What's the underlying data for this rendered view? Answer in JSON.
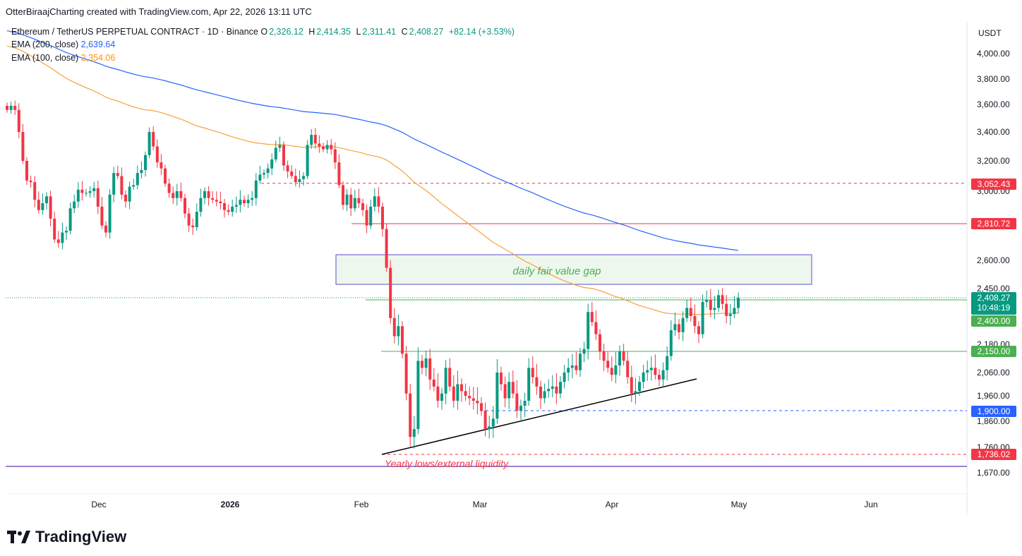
{
  "header": {
    "attribution": "OtterBiraajCharting created with TradingView.com, Apr 22, 2026 13:11 UTC"
  },
  "legend": {
    "symbol": "Ethereum / TetherUS PERPETUAL CONTRACT · 1D · Binance",
    "open_label": "O",
    "open": "2,326.12",
    "high_label": "H",
    "high": "2,414.35",
    "low_label": "L",
    "low": "2,311.41",
    "close_label": "C",
    "close": "2,408.27",
    "change": "+82.14 (+3.53%)",
    "ema200_label": "EMA (200, close)",
    "ema200_value": "2,639.64",
    "ema100_label": "EMA (100, close)",
    "ema100_value": "2,354.06"
  },
  "axis": {
    "currency": "USDT"
  },
  "annotations": {
    "fvg": "daily fair value gap",
    "yearly_lows": "Yearly lows/external liquidity"
  },
  "price_tags": {
    "p3052": "3,052.43",
    "p2810": "2,810.72",
    "current": "2,408.27",
    "countdown": "10:48:19",
    "p2400": "2,400.00",
    "p2150": "2,150.00",
    "p1900": "1,900.00",
    "p1736": "1,736.02"
  },
  "colors": {
    "up": "#089981",
    "down": "#f23645",
    "ema200": "#2962ff",
    "ema100": "#f7a23a",
    "green_level": "#4caf50",
    "red_level": "#f23645",
    "blue_level": "#2962ff",
    "purple": "#7e57c2"
  },
  "footer": {
    "brand": "TradingView"
  },
  "chart_data": {
    "type": "candlestick",
    "y_axis_ticks": [
      "4,000.00",
      "3,800.00",
      "3,600.00",
      "3,400.00",
      "3,200.00",
      "3,000.00",
      "2,600.00",
      "2,450.00",
      "2,180.00",
      "2,060.00",
      "1,960.00",
      "1,860.00",
      "1,760.00",
      "1,670.00"
    ],
    "x_axis_ticks": [
      "Dec",
      "2026",
      "Feb",
      "Mar",
      "Apr",
      "May",
      "Jun"
    ],
    "levels": [
      3052.43,
      2810.72,
      2400.0,
      2150.0,
      1900.0,
      1736.02
    ],
    "fvg_zone": [
      2480,
      2640
    ],
    "closes": [
      3560,
      3590,
      3560,
      3400,
      3200,
      3070,
      3060,
      2950,
      2890,
      2930,
      2970,
      2840,
      2720,
      2700,
      2760,
      2770,
      2900,
      2940,
      3010,
      2990,
      2990,
      3000,
      3020,
      2910,
      2800,
      2760,
      2980,
      3120,
      3100,
      2980,
      2940,
      3030,
      3040,
      3120,
      3140,
      3240,
      3400,
      3300,
      3190,
      3150,
      3050,
      2990,
      2960,
      3000,
      2960,
      2870,
      2800,
      2790,
      2880,
      2960,
      3000,
      2960,
      2950,
      2940,
      2930,
      2890,
      2880,
      2910,
      2920,
      2950,
      2930,
      2950,
      2960,
      3070,
      3110,
      3120,
      3150,
      3210,
      3290,
      3310,
      3170,
      3130,
      3100,
      3060,
      3080,
      3100,
      3310,
      3380,
      3320,
      3300,
      3280,
      3310,
      3280,
      3190,
      3040,
      2920,
      2980,
      2900,
      2960,
      2930,
      2890,
      2800,
      2910,
      2970,
      2910,
      2780,
      2560,
      2310,
      2220,
      2270,
      2140,
      1970,
      1800,
      1830,
      2110,
      2080,
      2120,
      2030,
      2000,
      1940,
      1970,
      2080,
      2000,
      1940,
      2010,
      1980,
      1960,
      1950,
      1940,
      1930,
      1900,
      1830,
      1840,
      1870,
      2060,
      2010,
      1950,
      2020,
      1970,
      1900,
      1920,
      1940,
      2080,
      2040,
      2000,
      1950,
      1980,
      1990,
      2000,
      1970,
      2020,
      2060,
      2080,
      2090,
      2070,
      2140,
      2160,
      2340,
      2290,
      2230,
      2150,
      2110,
      2080,
      2050,
      2090,
      2150,
      2110,
      2040,
      1970,
      1980,
      2020,
      2060,
      2070,
      2080,
      2050,
      2030,
      2070,
      2130,
      2250,
      2280,
      2240,
      2310,
      2360,
      2320,
      2270,
      2230,
      2390,
      2400,
      2350,
      2360,
      2420,
      2380,
      2320,
      2330,
      2360,
      2408
    ]
  }
}
